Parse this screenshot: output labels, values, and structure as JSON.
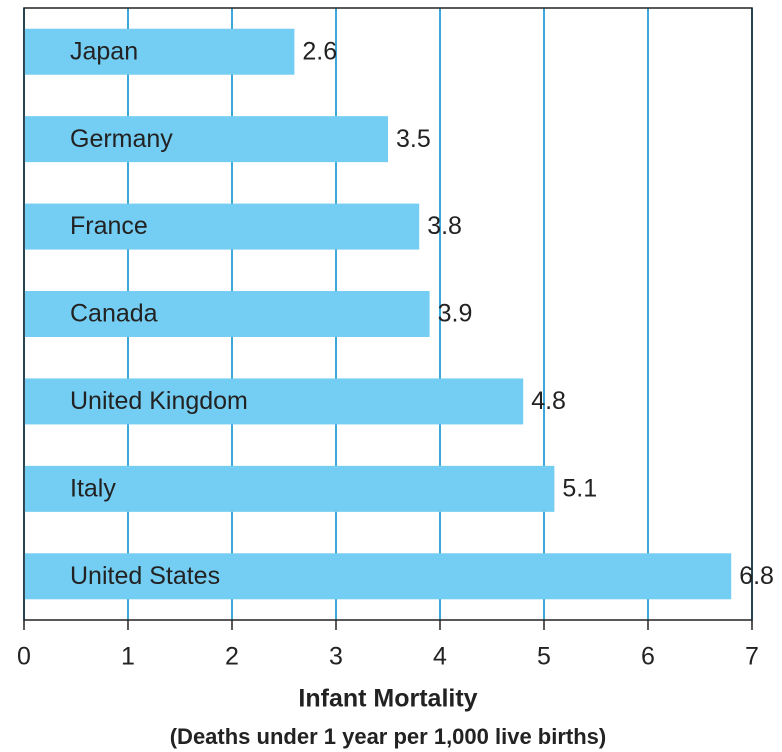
{
  "chart_data": {
    "type": "bar",
    "orientation": "horizontal",
    "categories": [
      "Japan",
      "Germany",
      "France",
      "Canada",
      "United Kingdom",
      "Italy",
      "United States"
    ],
    "values": [
      2.6,
      3.5,
      3.8,
      3.9,
      4.8,
      5.1,
      6.8
    ],
    "color": "#74cdf2",
    "grid_color": "#3aa8d8",
    "xlabel": "Infant Mortality",
    "xlabel_note": "(Deaths under 1 year per 1,000 live births)",
    "xlim": [
      0,
      7
    ],
    "xticks": [
      0,
      1,
      2,
      3,
      4,
      5,
      6,
      7
    ],
    "grid": true
  }
}
